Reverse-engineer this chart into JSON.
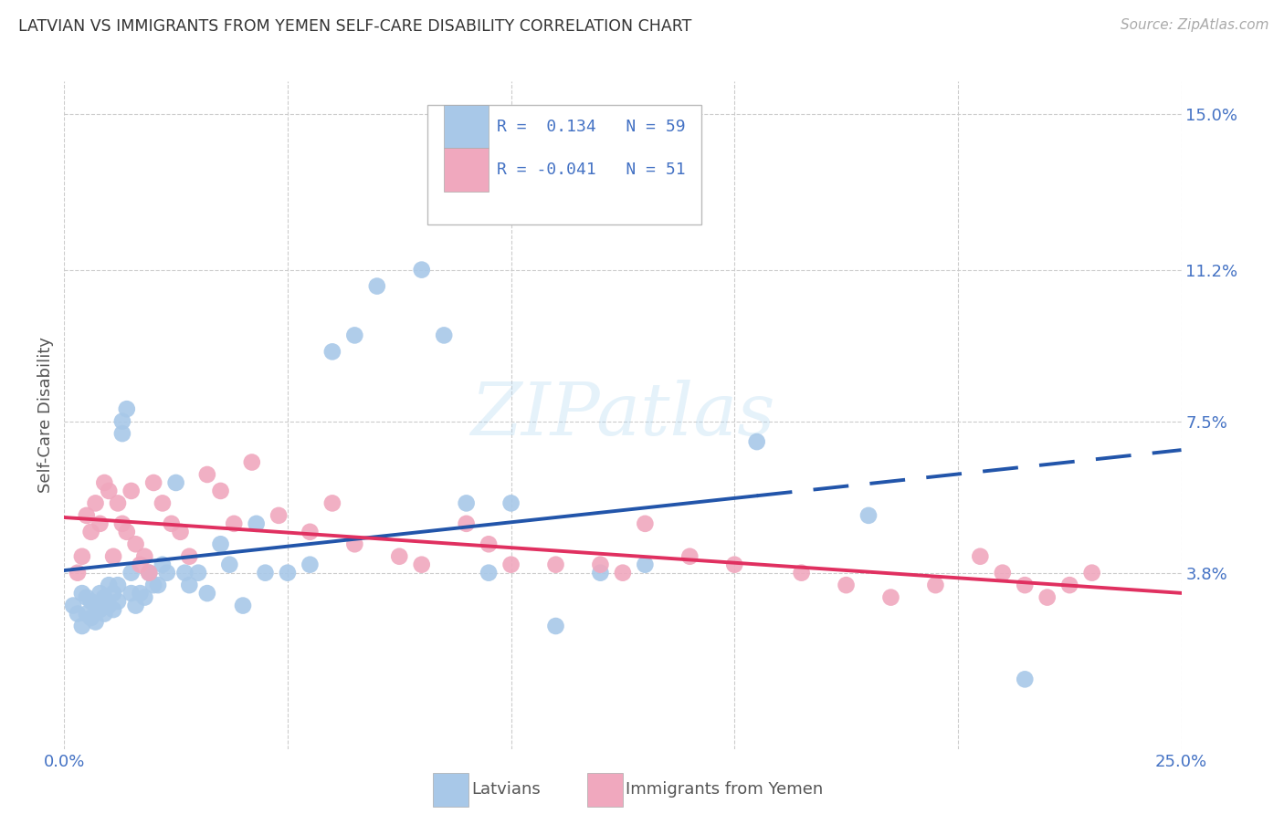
{
  "title": "LATVIAN VS IMMIGRANTS FROM YEMEN SELF-CARE DISABILITY CORRELATION CHART",
  "source": "Source: ZipAtlas.com",
  "ylabel": "Self-Care Disability",
  "xmin": 0.0,
  "xmax": 0.25,
  "ymin": -0.005,
  "ymax": 0.158,
  "yticks": [
    0.038,
    0.075,
    0.112,
    0.15
  ],
  "ytick_labels": [
    "3.8%",
    "7.5%",
    "11.2%",
    "15.0%"
  ],
  "xticks": [
    0.0,
    0.05,
    0.1,
    0.15,
    0.2,
    0.25
  ],
  "xtick_labels": [
    "0.0%",
    "",
    "",
    "",
    "",
    "25.0%"
  ],
  "legend_R_latvian": "0.134",
  "legend_N_latvian": "59",
  "legend_R_yemen": "-0.041",
  "legend_N_yemen": "51",
  "color_latvian": "#a8c8e8",
  "color_yemen": "#f0a8be",
  "color_line_latvian": "#2255aa",
  "color_line_yemen": "#e03060",
  "color_text_blue": "#4472c4",
  "color_grid": "#cccccc",
  "latvian_x": [
    0.002,
    0.003,
    0.004,
    0.004,
    0.005,
    0.005,
    0.006,
    0.006,
    0.007,
    0.007,
    0.008,
    0.008,
    0.009,
    0.009,
    0.01,
    0.01,
    0.011,
    0.011,
    0.012,
    0.012,
    0.013,
    0.013,
    0.014,
    0.015,
    0.015,
    0.016,
    0.017,
    0.018,
    0.019,
    0.02,
    0.021,
    0.022,
    0.023,
    0.025,
    0.027,
    0.028,
    0.03,
    0.032,
    0.035,
    0.037,
    0.04,
    0.043,
    0.045,
    0.05,
    0.055,
    0.06,
    0.065,
    0.07,
    0.08,
    0.085,
    0.09,
    0.095,
    0.1,
    0.11,
    0.12,
    0.13,
    0.155,
    0.18,
    0.215
  ],
  "latvian_y": [
    0.03,
    0.028,
    0.025,
    0.033,
    0.028,
    0.032,
    0.027,
    0.031,
    0.026,
    0.03,
    0.029,
    0.033,
    0.028,
    0.032,
    0.03,
    0.035,
    0.029,
    0.033,
    0.031,
    0.035,
    0.072,
    0.075,
    0.078,
    0.033,
    0.038,
    0.03,
    0.033,
    0.032,
    0.038,
    0.035,
    0.035,
    0.04,
    0.038,
    0.06,
    0.038,
    0.035,
    0.038,
    0.033,
    0.045,
    0.04,
    0.03,
    0.05,
    0.038,
    0.038,
    0.04,
    0.092,
    0.096,
    0.108,
    0.112,
    0.096,
    0.055,
    0.038,
    0.055,
    0.025,
    0.038,
    0.04,
    0.07,
    0.052,
    0.012
  ],
  "yemen_x": [
    0.003,
    0.004,
    0.005,
    0.006,
    0.007,
    0.008,
    0.009,
    0.01,
    0.011,
    0.012,
    0.013,
    0.014,
    0.015,
    0.016,
    0.017,
    0.018,
    0.019,
    0.02,
    0.022,
    0.024,
    0.026,
    0.028,
    0.032,
    0.035,
    0.038,
    0.042,
    0.048,
    0.055,
    0.06,
    0.065,
    0.075,
    0.08,
    0.09,
    0.095,
    0.1,
    0.11,
    0.12,
    0.125,
    0.13,
    0.14,
    0.15,
    0.165,
    0.175,
    0.185,
    0.195,
    0.205,
    0.21,
    0.215,
    0.22,
    0.225,
    0.23
  ],
  "yemen_y": [
    0.038,
    0.042,
    0.052,
    0.048,
    0.055,
    0.05,
    0.06,
    0.058,
    0.042,
    0.055,
    0.05,
    0.048,
    0.058,
    0.045,
    0.04,
    0.042,
    0.038,
    0.06,
    0.055,
    0.05,
    0.048,
    0.042,
    0.062,
    0.058,
    0.05,
    0.065,
    0.052,
    0.048,
    0.055,
    0.045,
    0.042,
    0.04,
    0.05,
    0.045,
    0.04,
    0.04,
    0.04,
    0.038,
    0.05,
    0.042,
    0.04,
    0.038,
    0.035,
    0.032,
    0.035,
    0.042,
    0.038,
    0.035,
    0.032,
    0.035,
    0.038
  ]
}
